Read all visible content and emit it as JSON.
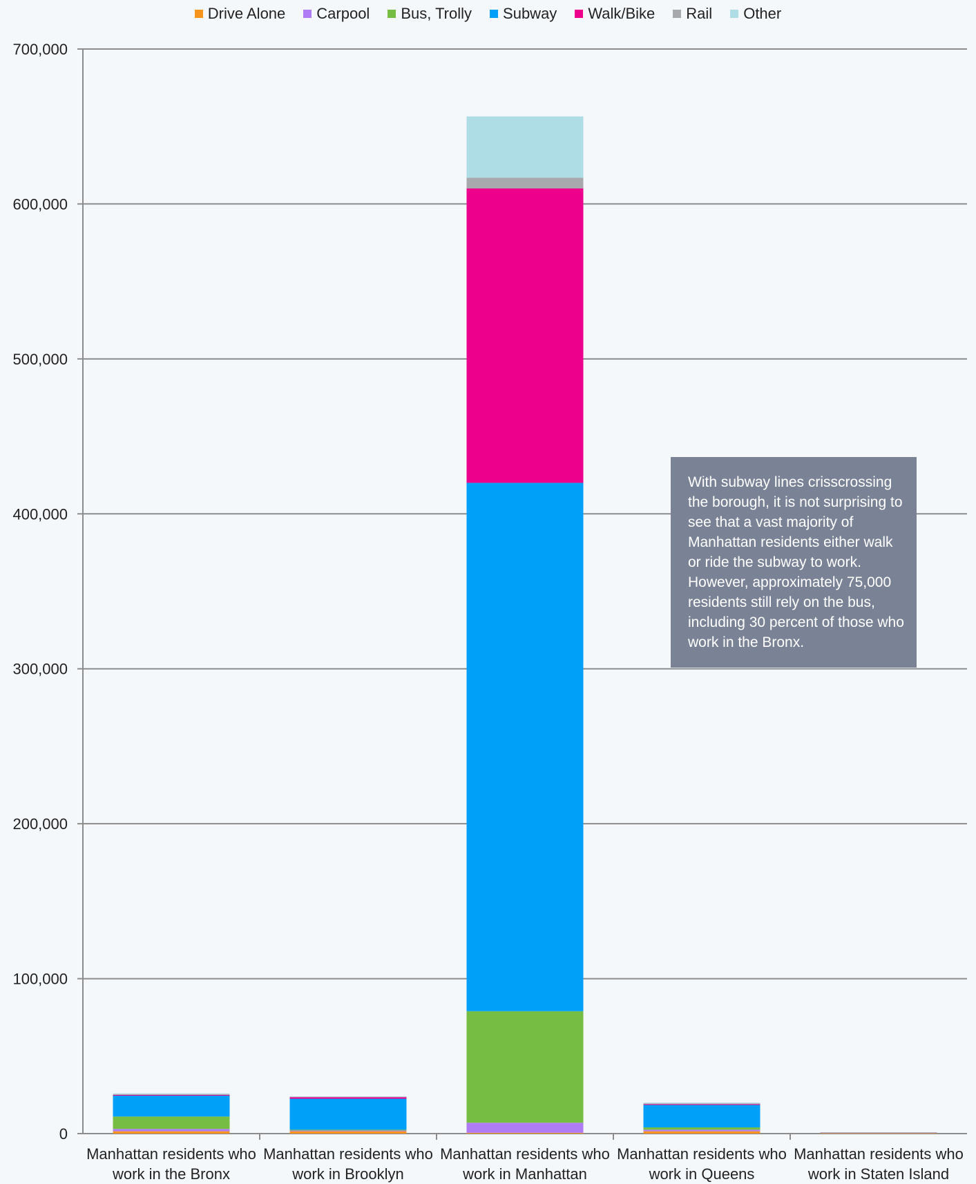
{
  "chart_data": {
    "type": "bar",
    "stacked": true,
    "categories": [
      [
        "Manhattan residents who",
        "work in the Bronx"
      ],
      [
        "Manhattan residents who",
        "work in Brooklyn"
      ],
      [
        "Manhattan residents who",
        "work in Manhattan"
      ],
      [
        "Manhattan residents who",
        "work in Queens"
      ],
      [
        "Manhattan residents who",
        "work in Staten Island"
      ]
    ],
    "series": [
      {
        "name": "Drive Alone",
        "color": "#f7941d",
        "values": [
          1500,
          1500,
          500,
          1500,
          300
        ]
      },
      {
        "name": "Carpool",
        "color": "#b07cf5",
        "values": [
          1500,
          500,
          6500,
          1000,
          100
        ]
      },
      {
        "name": "Bus, Trolly",
        "color": "#76bd43",
        "values": [
          8000,
          500,
          72000,
          1500,
          100
        ]
      },
      {
        "name": "Subway",
        "color": "#00a0f8",
        "values": [
          13500,
          20000,
          341000,
          14500,
          100
        ]
      },
      {
        "name": "Walk/Bike",
        "color": "#ec008c",
        "values": [
          500,
          1000,
          190000,
          500,
          100
        ]
      },
      {
        "name": "Rail",
        "color": "#a7a9ac",
        "values": [
          500,
          300,
          7000,
          500,
          100
        ]
      },
      {
        "name": "Other",
        "color": "#aedde6",
        "values": [
          500,
          200,
          39500,
          500,
          100
        ]
      }
    ],
    "yticks": [
      "0",
      "100,000",
      "200,000",
      "300,000",
      "400,000",
      "500,000",
      "600,000",
      "700,000"
    ],
    "ylim": [
      0,
      700000
    ],
    "grid": true,
    "legend_position": "top",
    "annotation": "With subway lines crisscrossing the borough, it is not surprising to see that a vast majority of Manhattan residents either walk or ride the subway to work. However, approximately 75,000 residents still rely on the bus, including 30 percent of those who work in the Bronx."
  }
}
